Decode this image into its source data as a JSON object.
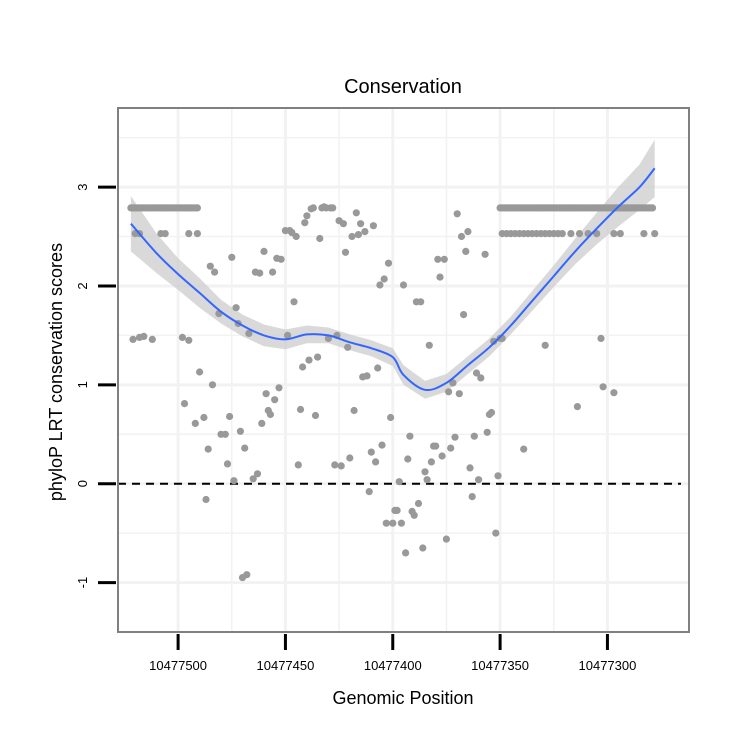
{
  "chart_data": {
    "type": "scatter",
    "title": "Conservation",
    "xlabel": "Genomic Position",
    "ylabel": "phyloP LRT conservation scores",
    "x_reversed": true,
    "xlim": [
      10477528,
      10477262
    ],
    "ylim": [
      -1.5,
      3.8
    ],
    "x_ticks": [
      10477500,
      10477450,
      10477400,
      10477350,
      10477300
    ],
    "x_tick_labels": [
      "10477500",
      "10477450",
      "10477400",
      "10477350",
      "10477300"
    ],
    "y_ticks": [
      -1,
      0,
      1,
      2,
      3
    ],
    "y_tick_labels": [
      "-1",
      "0",
      "1",
      "2",
      "3"
    ],
    "reference_line": {
      "y": 0,
      "style": "dashed"
    },
    "colors": {
      "points": "#999999",
      "smooth": "#3366ff",
      "ribbon": "#cccccc",
      "panel_border": "#808080",
      "grid": "#f2f2f2"
    },
    "grid": true,
    "points": [
      [
        10477522,
        2.79
      ],
      [
        10477521,
        2.79
      ],
      [
        10477520,
        2.79
      ],
      [
        10477519,
        2.79
      ],
      [
        10477518,
        2.79
      ],
      [
        10477517,
        2.79
      ],
      [
        10477516,
        2.79
      ],
      [
        10477515,
        2.79
      ],
      [
        10477514,
        2.79
      ],
      [
        10477513,
        2.79
      ],
      [
        10477512,
        2.79
      ],
      [
        10477511,
        2.79
      ],
      [
        10477510,
        2.79
      ],
      [
        10477509,
        2.79
      ],
      [
        10477508,
        2.79
      ],
      [
        10477507,
        2.79
      ],
      [
        10477506,
        2.79
      ],
      [
        10477505,
        2.79
      ],
      [
        10477504,
        2.79
      ],
      [
        10477503,
        2.79
      ],
      [
        10477502,
        2.79
      ],
      [
        10477501,
        2.79
      ],
      [
        10477500,
        2.79
      ],
      [
        10477499,
        2.79
      ],
      [
        10477498,
        2.79
      ],
      [
        10477497,
        2.79
      ],
      [
        10477496,
        2.79
      ],
      [
        10477495,
        2.79
      ],
      [
        10477494,
        2.79
      ],
      [
        10477493,
        2.79
      ],
      [
        10477492,
        2.79
      ],
      [
        10477491,
        2.79
      ],
      [
        10477520,
        2.53
      ],
      [
        10477518,
        2.53
      ],
      [
        10477508,
        2.53
      ],
      [
        10477506,
        2.53
      ],
      [
        10477495,
        2.53
      ],
      [
        10477491,
        2.53
      ],
      [
        10477521,
        1.46
      ],
      [
        10477518,
        1.48
      ],
      [
        10477516,
        1.49
      ],
      [
        10477512,
        1.46
      ],
      [
        10477498,
        1.48
      ],
      [
        10477495,
        1.45
      ],
      [
        10477497,
        0.81
      ],
      [
        10477492,
        0.61
      ],
      [
        10477490,
        1.13
      ],
      [
        10477488,
        0.67
      ],
      [
        10477487,
        -0.16
      ],
      [
        10477486,
        0.35
      ],
      [
        10477485,
        2.2
      ],
      [
        10477484,
        1.0
      ],
      [
        10477483,
        2.14
      ],
      [
        10477481,
        1.72
      ],
      [
        10477480,
        0.5
      ],
      [
        10477478,
        0.5
      ],
      [
        10477477,
        0.2
      ],
      [
        10477476,
        0.68
      ],
      [
        10477475,
        2.29
      ],
      [
        10477474,
        0.03
      ],
      [
        10477473,
        1.78
      ],
      [
        10477472,
        1.62
      ],
      [
        10477471,
        0.53
      ],
      [
        10477470,
        -0.95
      ],
      [
        10477469,
        0.36
      ],
      [
        10477468,
        -0.92
      ],
      [
        10477467,
        1.52
      ],
      [
        10477465,
        0.05
      ],
      [
        10477464,
        2.14
      ],
      [
        10477463,
        0.1
      ],
      [
        10477462,
        2.13
      ],
      [
        10477461,
        0.61
      ],
      [
        10477460,
        2.35
      ],
      [
        10477459,
        0.91
      ],
      [
        10477458,
        0.74
      ],
      [
        10477457,
        0.7
      ],
      [
        10477456,
        2.14
      ],
      [
        10477455,
        0.85
      ],
      [
        10477454,
        2.28
      ],
      [
        10477453,
        0.97
      ],
      [
        10477452,
        2.27
      ],
      [
        10477450,
        2.56
      ],
      [
        10477449,
        1.5
      ],
      [
        10477448,
        2.56
      ],
      [
        10477447,
        2.54
      ],
      [
        10477446,
        1.84
      ],
      [
        10477445,
        2.5
      ],
      [
        10477444,
        0.19
      ],
      [
        10477443,
        0.75
      ],
      [
        10477442,
        1.18
      ],
      [
        10477441,
        2.64
      ],
      [
        10477440,
        2.71
      ],
      [
        10477439,
        1.25
      ],
      [
        10477438,
        2.78
      ],
      [
        10477437,
        2.79
      ],
      [
        10477436,
        0.69
      ],
      [
        10477435,
        1.28
      ],
      [
        10477434,
        2.48
      ],
      [
        10477433,
        2.79
      ],
      [
        10477432,
        2.8
      ],
      [
        10477431,
        2.79
      ],
      [
        10477430,
        1.47
      ],
      [
        10477429,
        2.79
      ],
      [
        10477428,
        2.79
      ],
      [
        10477427,
        0.19
      ],
      [
        10477426,
        1.5
      ],
      [
        10477425,
        2.66
      ],
      [
        10477424,
        0.18
      ],
      [
        10477423,
        2.63
      ],
      [
        10477422,
        2.34
      ],
      [
        10477421,
        1.38
      ],
      [
        10477420,
        0.26
      ],
      [
        10477419,
        2.5
      ],
      [
        10477418,
        0.74
      ],
      [
        10477417,
        2.74
      ],
      [
        10477416,
        2.52
      ],
      [
        10477415,
        2.63
      ],
      [
        10477414,
        1.08
      ],
      [
        10477413,
        2.55
      ],
      [
        10477412,
        1.09
      ],
      [
        10477411,
        -0.08
      ],
      [
        10477410,
        0.32
      ],
      [
        10477409,
        2.61
      ],
      [
        10477408,
        0.22
      ],
      [
        10477407,
        1.17
      ],
      [
        10477406,
        2.01
      ],
      [
        10477405,
        0.39
      ],
      [
        10477404,
        2.07
      ],
      [
        10477403,
        -0.4
      ],
      [
        10477402,
        2.23
      ],
      [
        10477401,
        0.67
      ],
      [
        10477400,
        -0.4
      ],
      [
        10477399,
        -0.27
      ],
      [
        10477398,
        -0.27
      ],
      [
        10477397,
        0.02
      ],
      [
        10477396,
        -0.4
      ],
      [
        10477395,
        2.01
      ],
      [
        10477394,
        -0.7
      ],
      [
        10477393,
        0.25
      ],
      [
        10477392,
        0.48
      ],
      [
        10477391,
        -0.28
      ],
      [
        10477390,
        -0.32
      ],
      [
        10477389,
        1.84
      ],
      [
        10477388,
        -0.2
      ],
      [
        10477387,
        1.84
      ],
      [
        10477386,
        -0.65
      ],
      [
        10477385,
        0.12
      ],
      [
        10477384,
        0.04
      ],
      [
        10477383,
        1.4
      ],
      [
        10477382,
        0.22
      ],
      [
        10477381,
        0.38
      ],
      [
        10477380,
        0.38
      ],
      [
        10477379,
        2.27
      ],
      [
        10477378,
        2.09
      ],
      [
        10477377,
        0.28
      ],
      [
        10477376,
        2.27
      ],
      [
        10477375,
        -0.56
      ],
      [
        10477374,
        0.93
      ],
      [
        10477373,
        0.36
      ],
      [
        10477372,
        1.02
      ],
      [
        10477371,
        0.47
      ],
      [
        10477370,
        2.73
      ],
      [
        10477369,
        0.91
      ],
      [
        10477368,
        2.5
      ],
      [
        10477367,
        1.71
      ],
      [
        10477366,
        2.35
      ],
      [
        10477365,
        2.55
      ],
      [
        10477364,
        0.16
      ],
      [
        10477363,
        -0.13
      ],
      [
        10477362,
        0.48
      ],
      [
        10477361,
        1.12
      ],
      [
        10477360,
        0.04
      ],
      [
        10477359,
        1.07
      ],
      [
        10477357,
        2.32
      ],
      [
        10477356,
        0.52
      ],
      [
        10477355,
        0.7
      ],
      [
        10477354,
        0.72
      ],
      [
        10477353,
        1.44
      ],
      [
        10477352,
        -0.5
      ],
      [
        10477351,
        0.08
      ],
      [
        10477350,
        1.47
      ],
      [
        10477349,
        2.53
      ],
      [
        10477347,
        2.53
      ],
      [
        10477345,
        2.53
      ],
      [
        10477343,
        2.53
      ],
      [
        10477341,
        2.53
      ],
      [
        10477339,
        2.53
      ],
      [
        10477337,
        2.53
      ],
      [
        10477335,
        2.53
      ],
      [
        10477333,
        2.53
      ],
      [
        10477331,
        2.53
      ],
      [
        10477329,
        2.53
      ],
      [
        10477327,
        2.53
      ],
      [
        10477325,
        2.53
      ],
      [
        10477323,
        2.53
      ],
      [
        10477321,
        2.53
      ],
      [
        10477317,
        2.53
      ],
      [
        10477313,
        2.53
      ],
      [
        10477309,
        2.53
      ],
      [
        10477305,
        2.53
      ],
      [
        10477297,
        2.53
      ],
      [
        10477294,
        2.53
      ],
      [
        10477283,
        2.53
      ],
      [
        10477278,
        2.53
      ],
      [
        10477350,
        2.79
      ],
      [
        10477349,
        2.79
      ],
      [
        10477348,
        2.79
      ],
      [
        10477347,
        2.79
      ],
      [
        10477346,
        2.79
      ],
      [
        10477345,
        2.79
      ],
      [
        10477344,
        2.79
      ],
      [
        10477343,
        2.79
      ],
      [
        10477342,
        2.79
      ],
      [
        10477341,
        2.79
      ],
      [
        10477340,
        2.79
      ],
      [
        10477339,
        2.79
      ],
      [
        10477338,
        2.79
      ],
      [
        10477337,
        2.79
      ],
      [
        10477336,
        2.79
      ],
      [
        10477335,
        2.79
      ],
      [
        10477334,
        2.79
      ],
      [
        10477333,
        2.79
      ],
      [
        10477332,
        2.79
      ],
      [
        10477331,
        2.79
      ],
      [
        10477330,
        2.79
      ],
      [
        10477329,
        2.79
      ],
      [
        10477328,
        2.79
      ],
      [
        10477327,
        2.79
      ],
      [
        10477326,
        2.79
      ],
      [
        10477325,
        2.79
      ],
      [
        10477324,
        2.79
      ],
      [
        10477323,
        2.79
      ],
      [
        10477322,
        2.79
      ],
      [
        10477321,
        2.79
      ],
      [
        10477320,
        2.79
      ],
      [
        10477319,
        2.79
      ],
      [
        10477318,
        2.79
      ],
      [
        10477317,
        2.79
      ],
      [
        10477316,
        2.79
      ],
      [
        10477315,
        2.79
      ],
      [
        10477314,
        2.79
      ],
      [
        10477313,
        2.79
      ],
      [
        10477312,
        2.79
      ],
      [
        10477311,
        2.79
      ],
      [
        10477310,
        2.79
      ],
      [
        10477309,
        2.79
      ],
      [
        10477308,
        2.79
      ],
      [
        10477307,
        2.79
      ],
      [
        10477306,
        2.79
      ],
      [
        10477305,
        2.79
      ],
      [
        10477304,
        2.79
      ],
      [
        10477303,
        2.79
      ],
      [
        10477302,
        2.79
      ],
      [
        10477301,
        2.79
      ],
      [
        10477300,
        2.79
      ],
      [
        10477299,
        2.79
      ],
      [
        10477298,
        2.79
      ],
      [
        10477297,
        2.79
      ],
      [
        10477296,
        2.79
      ],
      [
        10477295,
        2.79
      ],
      [
        10477294,
        2.79
      ],
      [
        10477293,
        2.79
      ],
      [
        10477292,
        2.79
      ],
      [
        10477291,
        2.79
      ],
      [
        10477290,
        2.79
      ],
      [
        10477289,
        2.79
      ],
      [
        10477288,
        2.79
      ],
      [
        10477287,
        2.79
      ],
      [
        10477286,
        2.79
      ],
      [
        10477285,
        2.79
      ],
      [
        10477284,
        2.79
      ],
      [
        10477283,
        2.79
      ],
      [
        10477282,
        2.79
      ],
      [
        10477281,
        2.79
      ],
      [
        10477280,
        2.79
      ],
      [
        10477279,
        2.79
      ],
      [
        10477349,
        1.47
      ],
      [
        10477339,
        0.35
      ],
      [
        10477329,
        1.4
      ],
      [
        10477314,
        0.78
      ],
      [
        10477303,
        1.47
      ],
      [
        10477302,
        0.98
      ],
      [
        10477297,
        0.92
      ]
    ],
    "smooth": {
      "x": [
        10477522,
        10477510,
        10477500,
        10477490,
        10477480,
        10477470,
        10477460,
        10477450,
        10477440,
        10477430,
        10477420,
        10477410,
        10477400,
        10477395,
        10477385,
        10477375,
        10477365,
        10477355,
        10477345,
        10477335,
        10477325,
        10477315,
        10477305,
        10477295,
        10477285,
        10477278
      ],
      "y": [
        2.63,
        2.33,
        2.12,
        1.93,
        1.74,
        1.6,
        1.5,
        1.46,
        1.51,
        1.5,
        1.43,
        1.37,
        1.28,
        1.1,
        0.95,
        1.02,
        1.2,
        1.38,
        1.6,
        1.85,
        2.1,
        2.35,
        2.58,
        2.8,
        3.0,
        3.19
      ],
      "lower": [
        2.35,
        2.13,
        1.96,
        1.78,
        1.62,
        1.49,
        1.39,
        1.36,
        1.42,
        1.42,
        1.35,
        1.29,
        1.19,
        1.0,
        0.86,
        0.93,
        1.11,
        1.29,
        1.51,
        1.75,
        1.99,
        2.22,
        2.42,
        2.6,
        2.77,
        2.9
      ],
      "upper": [
        2.91,
        2.53,
        2.28,
        2.08,
        1.86,
        1.71,
        1.61,
        1.56,
        1.6,
        1.58,
        1.51,
        1.45,
        1.37,
        1.2,
        1.04,
        1.11,
        1.29,
        1.47,
        1.69,
        1.95,
        2.21,
        2.48,
        2.74,
        3.0,
        3.23,
        3.48
      ]
    }
  }
}
